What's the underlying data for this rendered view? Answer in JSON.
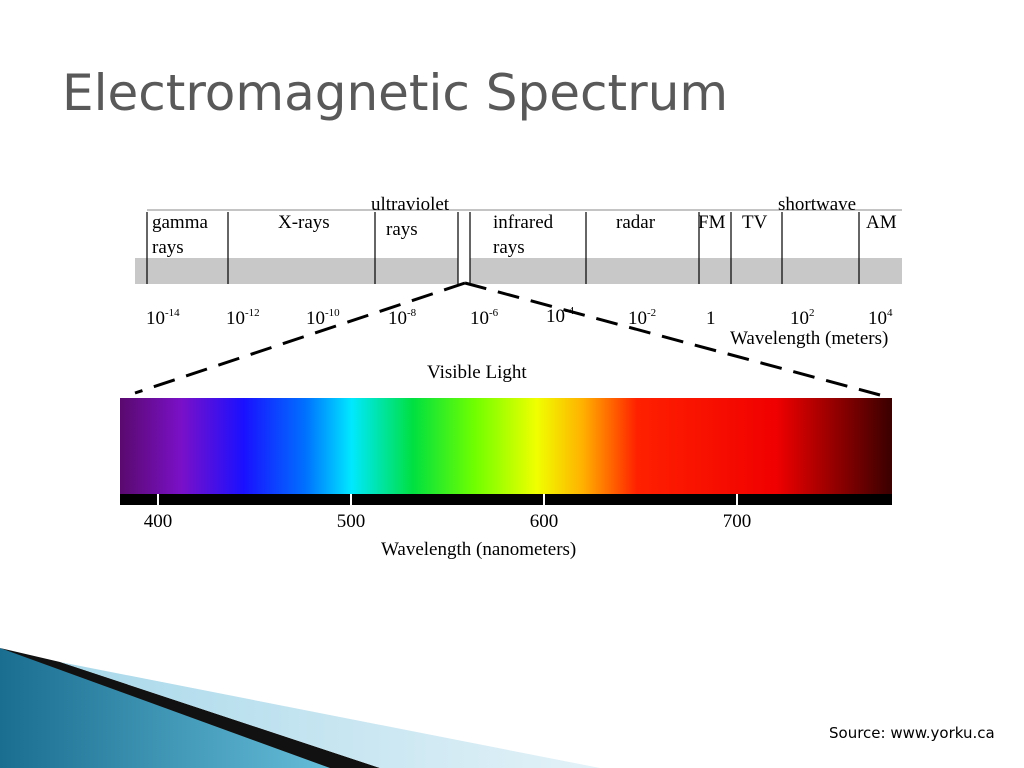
{
  "title": "Electromagnetic Spectrum",
  "bands": [
    {
      "lines": [
        "gamma",
        "rays"
      ]
    },
    {
      "lines": [
        "X-rays"
      ]
    },
    {
      "lines": [
        "ultraviolet",
        "rays"
      ]
    },
    {
      "lines": [
        "infrared",
        "rays"
      ]
    },
    {
      "lines": [
        "radar"
      ]
    },
    {
      "lines": [
        "FM"
      ]
    },
    {
      "lines": [
        "TV"
      ]
    },
    {
      "lines": [
        "shortwave"
      ]
    },
    {
      "lines": [
        "AM"
      ]
    }
  ],
  "wavelength_ticks": [
    {
      "base": "10",
      "exp": "-14"
    },
    {
      "base": "10",
      "exp": "-12"
    },
    {
      "base": "10",
      "exp": "-10"
    },
    {
      "base": "10",
      "exp": "-8"
    },
    {
      "base": "10",
      "exp": "-6"
    },
    {
      "base": "10",
      "exp": "-4"
    },
    {
      "base": "10",
      "exp": "-2"
    },
    {
      "base": "1"
    },
    {
      "base": "10",
      "exp": "2"
    },
    {
      "base": "10",
      "exp": "4"
    }
  ],
  "wavelength_axis_label": "Wavelength (meters)",
  "visible_title": "Visible Light",
  "visible_ticks": [
    "400",
    "500",
    "600",
    "700"
  ],
  "visible_axis_label": "Wavelength (nanometers)",
  "source": "Source: www.yorku.ca"
}
